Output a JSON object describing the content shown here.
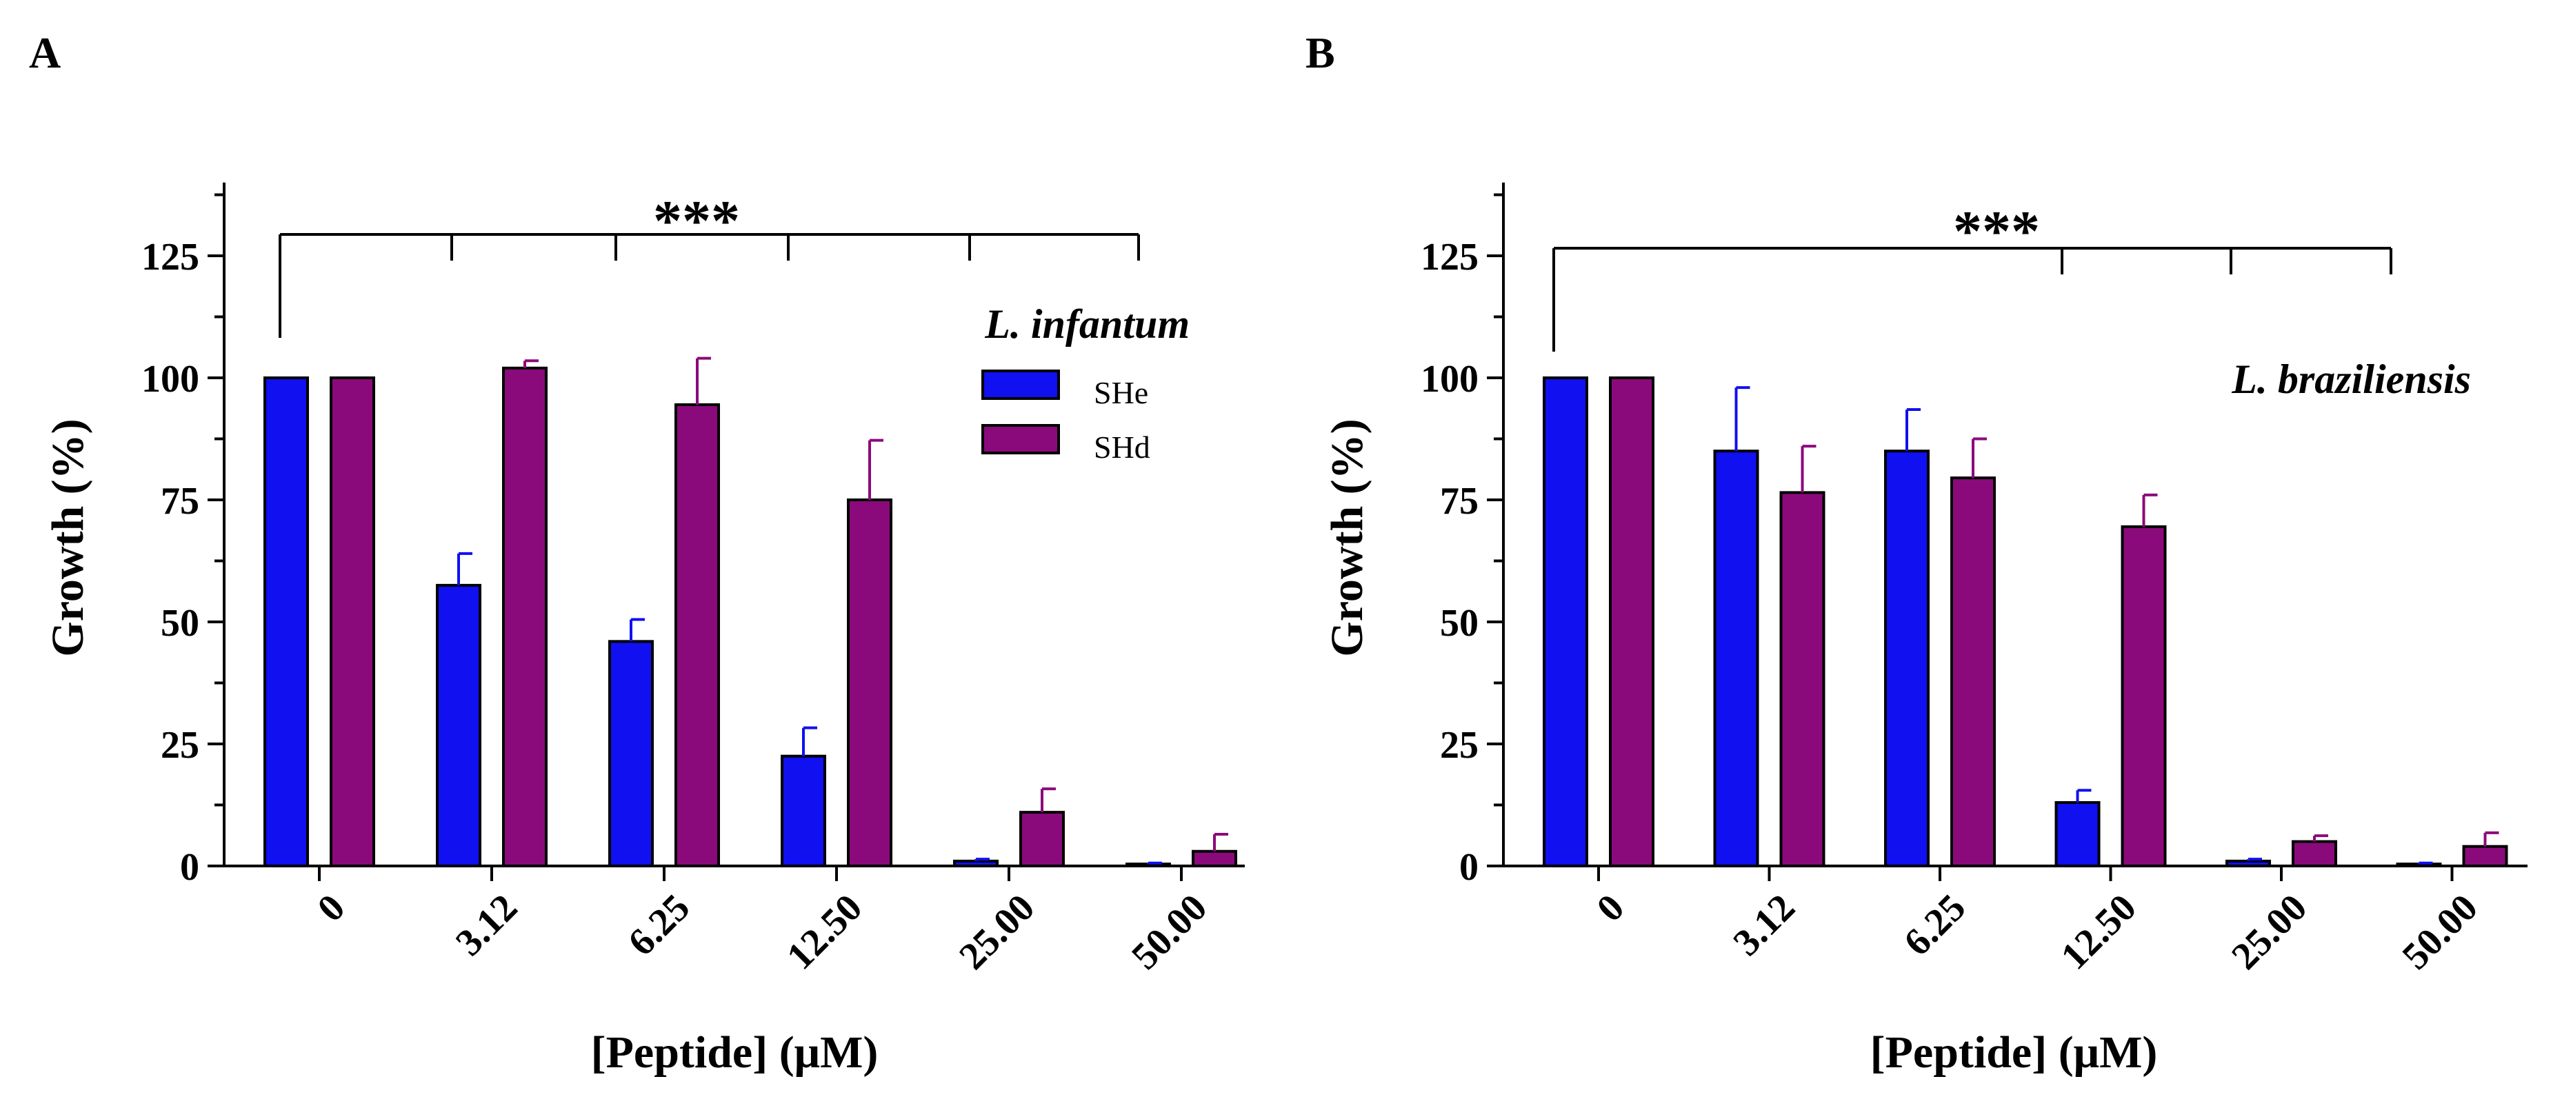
{
  "chart_data": [
    {
      "panel": "A",
      "type": "bar",
      "xlabel": "[Peptide] (μM)",
      "ylabel": "Growth (%)",
      "ylim": [
        0,
        140
      ],
      "yticks": [
        "0",
        "25",
        "50",
        "75",
        "100",
        "125"
      ],
      "categories": [
        "0",
        "3.12",
        "6.25",
        "12.50",
        "25.00",
        "50.00"
      ],
      "organism": "L. infantum",
      "significance": "***",
      "legend_position": "top-right",
      "grid": false,
      "series": [
        {
          "name": "SHe",
          "color": "#1010f0",
          "values": [
            100,
            57.5,
            46,
            22.5,
            1,
            0.4
          ],
          "errors": [
            0,
            6.5,
            4.5,
            5.8,
            0.4,
            0.2
          ]
        },
        {
          "name": "SHd",
          "color": "#8b0a7b",
          "values": [
            100,
            102,
            94.5,
            75,
            11,
            3
          ],
          "errors": [
            0,
            1.5,
            9.5,
            12.2,
            4.8,
            3.5
          ]
        }
      ]
    },
    {
      "panel": "B",
      "type": "bar",
      "xlabel": "[Peptide] (μM)",
      "ylabel": "Growth (%)",
      "ylim": [
        0,
        140
      ],
      "yticks": [
        "0",
        "25",
        "50",
        "75",
        "100",
        "125"
      ],
      "categories": [
        "0",
        "3.12",
        "6.25",
        "12.50",
        "25.00",
        "50.00"
      ],
      "organism": "L. braziliensis",
      "significance": "***",
      "legend_position": "none",
      "grid": false,
      "series": [
        {
          "name": "SHe",
          "color": "#1010f0",
          "values": [
            100,
            85,
            85,
            13,
            1,
            0.4
          ],
          "errors": [
            0,
            13,
            8.5,
            2.5,
            0.4,
            0.2
          ]
        },
        {
          "name": "SHd",
          "color": "#8b0a7b",
          "values": [
            100,
            76.5,
            79.5,
            69.5,
            5,
            4
          ],
          "errors": [
            0,
            9.5,
            8,
            6.5,
            1.2,
            2.8
          ]
        }
      ]
    }
  ]
}
